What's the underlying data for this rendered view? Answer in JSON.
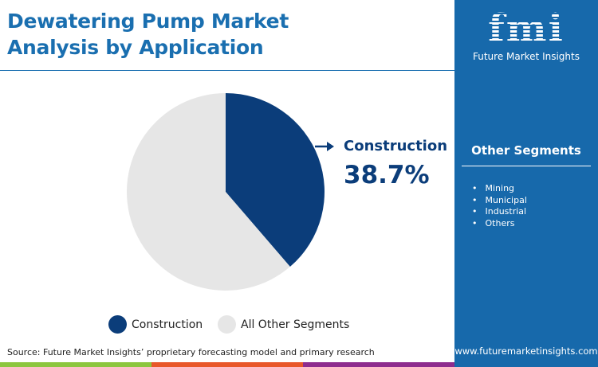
{
  "title": [
    "Dewatering Pump Market",
    "Analysis by Application"
  ],
  "brand": {
    "logo": "fmi",
    "name": "Future Market Insights",
    "url": "www.futuremarketinsights.com"
  },
  "side_panel": {
    "title": "Other Segments",
    "items": [
      "Mining",
      "Municipal",
      "Industrial",
      "Others"
    ]
  },
  "source": "Source: Future Market Insights’ proprietary forecasting model and primary research",
  "colors": {
    "construction": "#0b3d7a",
    "other": "#e6e6e6",
    "panel": "#1769ab",
    "stripe": [
      "#8cc63f",
      "#e8582a",
      "#8e2c8e"
    ]
  },
  "chart_data": {
    "type": "pie",
    "slices": [
      {
        "name": "Construction",
        "value": 38.7,
        "color": "#0b3d7a"
      },
      {
        "name": "All Other Segments",
        "value": 61.3,
        "color": "#e6e6e6"
      }
    ],
    "callout": {
      "label": "Construction",
      "value_text": "38.7%"
    },
    "legend": [
      "Construction",
      "All Other Segments"
    ],
    "legend_position": "bottom"
  }
}
